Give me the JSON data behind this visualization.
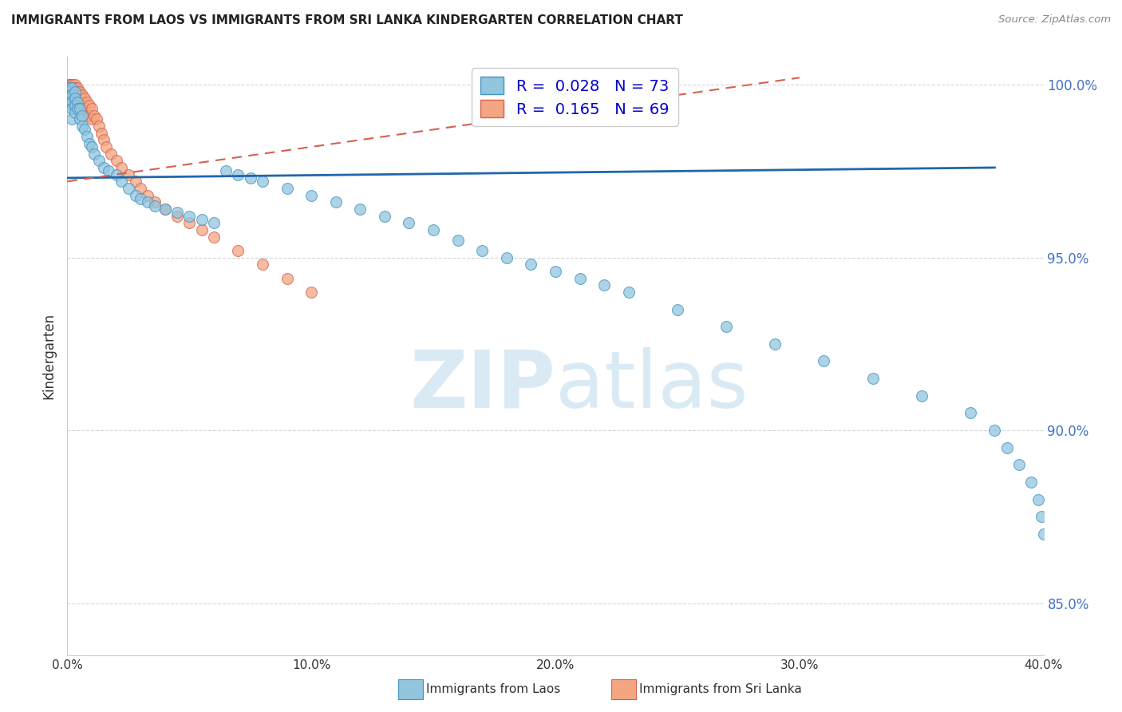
{
  "title": "IMMIGRANTS FROM LAOS VS IMMIGRANTS FROM SRI LANKA KINDERGARTEN CORRELATION CHART",
  "source": "Source: ZipAtlas.com",
  "ylabel": "Kindergarten",
  "legend_blue_R": "0.028",
  "legend_blue_N": "73",
  "legend_pink_R": "0.165",
  "legend_pink_N": "69",
  "legend_label_blue": "Immigrants from Laos",
  "legend_label_pink": "Immigrants from Sri Lanka",
  "blue_color": "#92c5de",
  "blue_edge_color": "#4393c3",
  "pink_color": "#f4a582",
  "pink_edge_color": "#d6604d",
  "trendline_blue_color": "#2166ac",
  "trendline_pink_color": "#d6604d",
  "watermark_color": "#daeaf5",
  "grid_color": "#cccccc",
  "xlim": [
    0.0,
    0.4
  ],
  "ylim": [
    0.835,
    1.008
  ],
  "x_ticks": [
    0.0,
    0.1,
    0.2,
    0.3,
    0.4
  ],
  "y_ticks": [
    0.85,
    0.9,
    0.95,
    1.0
  ],
  "y_tick_labels": [
    "85.0%",
    "90.0%",
    "95.0%",
    "100.0%"
  ],
  "blue_trend_x": [
    0.0,
    0.38
  ],
  "blue_trend_y": [
    0.973,
    0.976
  ],
  "pink_trend_x": [
    0.0,
    0.3
  ],
  "pink_trend_y": [
    0.972,
    1.002
  ],
  "blue_x": [
    0.001,
    0.001,
    0.001,
    0.001,
    0.001,
    0.002,
    0.002,
    0.002,
    0.002,
    0.002,
    0.003,
    0.003,
    0.003,
    0.003,
    0.004,
    0.004,
    0.005,
    0.005,
    0.006,
    0.006,
    0.007,
    0.008,
    0.009,
    0.01,
    0.011,
    0.013,
    0.015,
    0.017,
    0.02,
    0.022,
    0.025,
    0.028,
    0.03,
    0.033,
    0.036,
    0.04,
    0.045,
    0.05,
    0.055,
    0.06,
    0.065,
    0.07,
    0.075,
    0.08,
    0.09,
    0.1,
    0.11,
    0.12,
    0.13,
    0.14,
    0.15,
    0.16,
    0.17,
    0.18,
    0.19,
    0.2,
    0.21,
    0.22,
    0.23,
    0.25,
    0.27,
    0.29,
    0.31,
    0.33,
    0.35,
    0.37,
    0.38,
    0.385,
    0.39,
    0.395,
    0.398,
    0.399,
    0.4
  ],
  "blue_y": [
    0.999,
    0.998,
    0.997,
    0.996,
    0.995,
    0.999,
    0.997,
    0.995,
    0.993,
    0.99,
    0.998,
    0.996,
    0.994,
    0.992,
    0.995,
    0.993,
    0.993,
    0.99,
    0.991,
    0.988,
    0.987,
    0.985,
    0.983,
    0.982,
    0.98,
    0.978,
    0.976,
    0.975,
    0.974,
    0.972,
    0.97,
    0.968,
    0.967,
    0.966,
    0.965,
    0.964,
    0.963,
    0.962,
    0.961,
    0.96,
    0.975,
    0.974,
    0.973,
    0.972,
    0.97,
    0.968,
    0.966,
    0.964,
    0.962,
    0.96,
    0.958,
    0.955,
    0.952,
    0.95,
    0.948,
    0.946,
    0.944,
    0.942,
    0.94,
    0.935,
    0.93,
    0.925,
    0.92,
    0.915,
    0.91,
    0.905,
    0.9,
    0.895,
    0.89,
    0.885,
    0.88,
    0.875,
    0.87
  ],
  "pink_x": [
    0.001,
    0.001,
    0.001,
    0.001,
    0.001,
    0.001,
    0.001,
    0.001,
    0.001,
    0.001,
    0.002,
    0.002,
    0.002,
    0.002,
    0.002,
    0.002,
    0.002,
    0.002,
    0.002,
    0.002,
    0.003,
    0.003,
    0.003,
    0.003,
    0.003,
    0.003,
    0.003,
    0.003,
    0.004,
    0.004,
    0.004,
    0.004,
    0.004,
    0.005,
    0.005,
    0.005,
    0.006,
    0.006,
    0.007,
    0.007,
    0.008,
    0.008,
    0.009,
    0.009,
    0.01,
    0.01,
    0.011,
    0.012,
    0.013,
    0.014,
    0.015,
    0.016,
    0.018,
    0.02,
    0.022,
    0.025,
    0.028,
    0.03,
    0.033,
    0.036,
    0.04,
    0.045,
    0.05,
    0.055,
    0.06,
    0.07,
    0.08,
    0.09,
    0.1
  ],
  "pink_y": [
    1.0,
    1.0,
    1.0,
    0.999,
    0.999,
    0.999,
    0.998,
    0.998,
    0.997,
    0.997,
    1.0,
    1.0,
    0.999,
    0.999,
    0.998,
    0.998,
    0.997,
    0.996,
    0.995,
    0.994,
    1.0,
    0.999,
    0.999,
    0.998,
    0.997,
    0.996,
    0.995,
    0.994,
    0.999,
    0.998,
    0.997,
    0.996,
    0.995,
    0.998,
    0.997,
    0.995,
    0.997,
    0.994,
    0.996,
    0.993,
    0.995,
    0.992,
    0.994,
    0.991,
    0.993,
    0.99,
    0.991,
    0.99,
    0.988,
    0.986,
    0.984,
    0.982,
    0.98,
    0.978,
    0.976,
    0.974,
    0.972,
    0.97,
    0.968,
    0.966,
    0.964,
    0.962,
    0.96,
    0.958,
    0.956,
    0.952,
    0.948,
    0.944,
    0.94
  ]
}
